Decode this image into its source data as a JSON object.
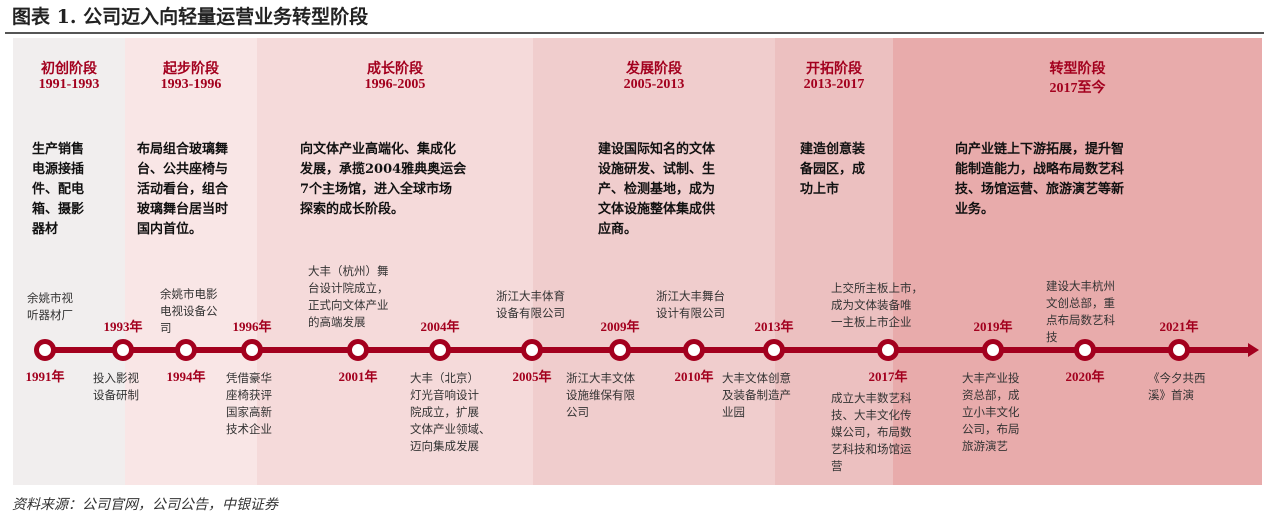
{
  "title": "图表 1. 公司迈入向轻量运营业务转型阶段",
  "phases": [
    {
      "name": "初创阶段",
      "years": "1991-1993",
      "desc": "生产销售\n电源接插\n件、配电\n箱、摄影\n器材",
      "color": "#f1eeee"
    },
    {
      "name": "起步阶段",
      "years": "1993-1996",
      "desc": "布局组合玻璃舞\n台、公共座椅与\n活动看台，组合\n玻璃舞台居当时\n国内首位。",
      "color": "#f9e6e6"
    },
    {
      "name": "成长阶段",
      "years": "1996-2005",
      "desc": "向文体产业高端化、集成化\n发展，承揽2004雅典奥运会\n7个主场馆，进入全球市场\n探索的成长阶段。",
      "color": "#f5dada"
    },
    {
      "name": "发展阶段",
      "years": "2005-2013",
      "desc": "建设国际知名的文体\n设施研发、试制、生\n产、检测基地，成为\n文体设施整体集成供\n应商。",
      "color": "#f0cdcd"
    },
    {
      "name": "开拓阶段",
      "years": "2013-2017",
      "desc": "建造创意装\n备园区，成\n功上市",
      "color": "#ecc0c0"
    },
    {
      "name": "转型阶段",
      "years": "2017至今",
      "desc": "向产业链上下游拓展，提升智\n能制造能力，战略布局数艺科\n技、场馆运营、旅游演艺等新\n业务。",
      "color": "#e8abab"
    }
  ],
  "events": [
    {
      "year": "1991年",
      "text": "余姚市视\n听器材厂"
    },
    {
      "year": "1993年",
      "text": "投入影视\n设备研制"
    },
    {
      "year": "1994年",
      "text": "余姚市电影\n电视设备公\n司"
    },
    {
      "year": "1996年",
      "text": "凭借豪华\n座椅获评\n国家高新\n技术企业"
    },
    {
      "year": "2001年",
      "text": "大丰（杭州）舞\n台设计院成立，\n正式向文体产业\n的高端发展"
    },
    {
      "year": "2004年",
      "text": "大丰（北京）\n灯光音响设计\n院成立，扩展\n文体产业领域、\n迈向集成发展"
    },
    {
      "year": "2005年",
      "text": "浙江大丰体育\n设备有限公司"
    },
    {
      "year": "2009年",
      "text": "浙江大丰文体\n设施维保有限\n公司"
    },
    {
      "year": "2010年",
      "text": "浙江大丰舞台\n设计有限公司"
    },
    {
      "year": "2013年",
      "text": "大丰文体创意\n及装备制造产\n业园"
    },
    {
      "year": "2017年",
      "text": "上交所主板上市，\n成为文体装备唯\n一主板上市企业",
      "text2": "成立大丰数艺科\n技、大丰文化传\n媒公司，布局数\n艺科技和场馆运\n营"
    },
    {
      "year": "2019年",
      "text": "大丰产业投\n资总部，成\n立小丰文化\n公司，布局\n旅游演艺"
    },
    {
      "year": "2020年",
      "text": "建设大丰杭州\n文创总部，重\n点布局数艺科\n技"
    },
    {
      "year": "2021年",
      "text": "《今夕共西\n溪》首演"
    }
  ],
  "accent": "#a3001e",
  "footer": "资料来源：公司官网，公司公告，中银证券"
}
